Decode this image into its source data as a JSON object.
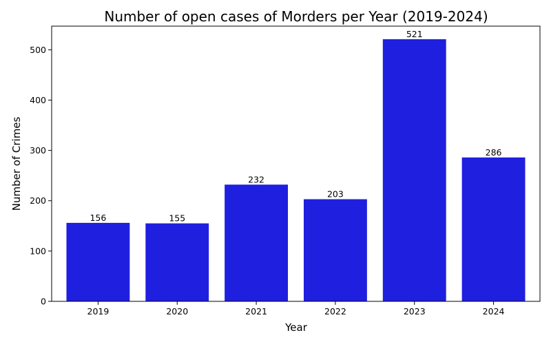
{
  "chart_data": {
    "type": "bar",
    "title": "Number of open cases of Morders per Year (2019-2024)",
    "xlabel": "Year",
    "ylabel": "Number of Crimes",
    "categories": [
      "2019",
      "2020",
      "2021",
      "2022",
      "2023",
      "2024"
    ],
    "values": [
      156,
      155,
      232,
      203,
      521,
      286
    ],
    "ylim": [
      0,
      547
    ],
    "yticks": [
      0,
      100,
      200,
      300,
      400,
      500
    ],
    "bar_color": "#1f1fe0",
    "grid": false,
    "legend": "none"
  }
}
